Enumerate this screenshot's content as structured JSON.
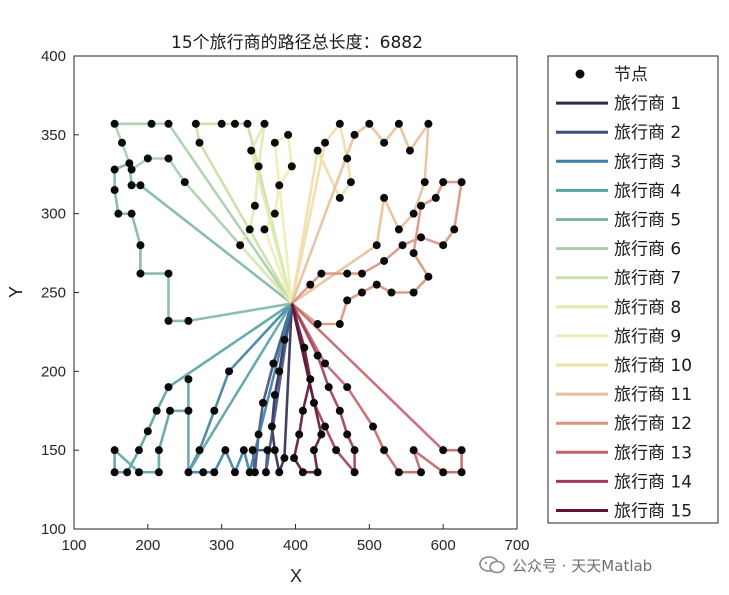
{
  "chart_data": {
    "type": "line",
    "title": "15个旅行商的路径总长度：6882",
    "xlabel": "X",
    "ylabel": "Y",
    "xlim": [
      100,
      700
    ],
    "ylim": [
      100,
      400
    ],
    "xticks": [
      "100",
      "200",
      "300",
      "400",
      "500",
      "600",
      "700"
    ],
    "yticks": [
      "100",
      "150",
      "200",
      "250",
      "300",
      "350",
      "400"
    ],
    "grid": false,
    "legend_position": "outside-right",
    "depot": [
      395,
      243
    ],
    "node_label": "节点",
    "series": [
      {
        "name": "旅行商 1",
        "color": "#2f2a4f",
        "points": [
          [
            395,
            243
          ],
          [
            385,
            220
          ],
          [
            378,
            200
          ],
          [
            372,
            185
          ],
          [
            368,
            165
          ],
          [
            372,
            150
          ],
          [
            378,
            136
          ],
          [
            385,
            145
          ],
          [
            395,
            243
          ]
        ]
      },
      {
        "name": "旅行商 2",
        "color": "#3b4f7e",
        "points": [
          [
            395,
            243
          ],
          [
            370,
            205
          ],
          [
            356,
            180
          ],
          [
            350,
            160
          ],
          [
            345,
            136
          ],
          [
            342,
            150
          ],
          [
            362,
            150
          ],
          [
            360,
            136
          ],
          [
            395,
            243
          ]
        ]
      },
      {
        "name": "旅行商 3",
        "color": "#3f7fa0",
        "points": [
          [
            395,
            243
          ],
          [
            310,
            200
          ],
          [
            290,
            175
          ],
          [
            270,
            150
          ],
          [
            255,
            136
          ],
          [
            275,
            136
          ],
          [
            290,
            136
          ],
          [
            305,
            150
          ],
          [
            318,
            136
          ],
          [
            330,
            150
          ],
          [
            338,
            136
          ],
          [
            395,
            243
          ]
        ]
      },
      {
        "name": "旅行商 4",
        "color": "#5aa3a3",
        "points": [
          [
            395,
            243
          ],
          [
            228,
            190
          ],
          [
            212,
            175
          ],
          [
            200,
            162
          ],
          [
            188,
            150
          ],
          [
            172,
            136
          ],
          [
            155,
            136
          ],
          [
            155,
            150
          ],
          [
            188,
            136
          ],
          [
            215,
            136
          ],
          [
            215,
            150
          ],
          [
            230,
            175
          ],
          [
            255,
            175
          ],
          [
            255,
            195
          ],
          [
            255,
            136
          ],
          [
            395,
            243
          ]
        ]
      },
      {
        "name": "旅行商 5",
        "color": "#7fb6a8",
        "points": [
          [
            395,
            243
          ],
          [
            255,
            232
          ],
          [
            228,
            232
          ],
          [
            228,
            262
          ],
          [
            190,
            262
          ],
          [
            190,
            280
          ],
          [
            178,
            300
          ],
          [
            160,
            300
          ],
          [
            155,
            315
          ],
          [
            155,
            328
          ],
          [
            175,
            332
          ],
          [
            178,
            318
          ],
          [
            190,
            318
          ],
          [
            395,
            243
          ]
        ]
      },
      {
        "name": "旅行商 6",
        "color": "#a6cfab",
        "points": [
          [
            395,
            243
          ],
          [
            250,
            320
          ],
          [
            228,
            335
          ],
          [
            200,
            335
          ],
          [
            178,
            328
          ],
          [
            165,
            345
          ],
          [
            155,
            357
          ],
          [
            205,
            357
          ],
          [
            228,
            357
          ],
          [
            395,
            243
          ]
        ]
      },
      {
        "name": "旅行商 7",
        "color": "#c8e0a6",
        "points": [
          [
            395,
            243
          ],
          [
            270,
            345
          ],
          [
            265,
            357
          ],
          [
            300,
            357
          ],
          [
            318,
            357
          ],
          [
            335,
            357
          ],
          [
            395,
            243
          ]
        ]
      },
      {
        "name": "旅行商 8",
        "color": "#e1ebb0",
        "points": [
          [
            395,
            243
          ],
          [
            340,
            340
          ],
          [
            358,
            357
          ],
          [
            350,
            330
          ],
          [
            345,
            305
          ],
          [
            338,
            290
          ],
          [
            325,
            280
          ],
          [
            395,
            243
          ]
        ]
      },
      {
        "name": "旅行商 9",
        "color": "#f0ecb4",
        "points": [
          [
            395,
            243
          ],
          [
            372,
            345
          ],
          [
            390,
            350
          ],
          [
            395,
            330
          ],
          [
            378,
            318
          ],
          [
            372,
            300
          ],
          [
            358,
            290
          ],
          [
            395,
            243
          ]
        ]
      },
      {
        "name": "旅行商 10",
        "color": "#f1dda8",
        "points": [
          [
            395,
            243
          ],
          [
            440,
            345
          ],
          [
            460,
            357
          ],
          [
            470,
            335
          ],
          [
            475,
            320
          ],
          [
            460,
            310
          ],
          [
            430,
            340
          ],
          [
            395,
            243
          ]
        ]
      },
      {
        "name": "旅行商 11",
        "color": "#e7c19a",
        "points": [
          [
            395,
            243
          ],
          [
            480,
            350
          ],
          [
            500,
            357
          ],
          [
            520,
            345
          ],
          [
            540,
            357
          ],
          [
            555,
            340
          ],
          [
            580,
            357
          ],
          [
            575,
            320
          ],
          [
            560,
            300
          ],
          [
            540,
            290
          ],
          [
            520,
            310
          ],
          [
            510,
            280
          ],
          [
            395,
            243
          ]
        ]
      },
      {
        "name": "旅行商 12",
        "color": "#d8957e",
        "points": [
          [
            395,
            243
          ],
          [
            420,
            255
          ],
          [
            435,
            262
          ],
          [
            470,
            262
          ],
          [
            490,
            262
          ],
          [
            520,
            270
          ],
          [
            545,
            280
          ],
          [
            570,
            285
          ],
          [
            600,
            280
          ],
          [
            615,
            290
          ],
          [
            625,
            320
          ],
          [
            600,
            320
          ],
          [
            590,
            310
          ],
          [
            570,
            305
          ],
          [
            560,
            275
          ],
          [
            580,
            260
          ],
          [
            560,
            250
          ],
          [
            530,
            250
          ],
          [
            510,
            255
          ],
          [
            490,
            250
          ],
          [
            470,
            245
          ],
          [
            460,
            230
          ],
          [
            430,
            230
          ],
          [
            395,
            243
          ]
        ]
      },
      {
        "name": "旅行商 13",
        "color": "#c2666a",
        "points": [
          [
            395,
            243
          ],
          [
            440,
            205
          ],
          [
            470,
            190
          ],
          [
            505,
            165
          ],
          [
            520,
            150
          ],
          [
            540,
            136
          ],
          [
            570,
            136
          ],
          [
            560,
            150
          ],
          [
            600,
            136
          ],
          [
            625,
            136
          ],
          [
            625,
            150
          ],
          [
            600,
            150
          ],
          [
            395,
            243
          ]
        ]
      },
      {
        "name": "旅行商 14",
        "color": "#9f3c5c",
        "points": [
          [
            395,
            243
          ],
          [
            430,
            210
          ],
          [
            445,
            190
          ],
          [
            460,
            175
          ],
          [
            470,
            160
          ],
          [
            480,
            150
          ],
          [
            480,
            136
          ],
          [
            455,
            150
          ],
          [
            440,
            165
          ],
          [
            425,
            180
          ],
          [
            395,
            243
          ]
        ]
      },
      {
        "name": "旅行商 15",
        "color": "#5e1436",
        "points": [
          [
            395,
            243
          ],
          [
            412,
            215
          ],
          [
            420,
            195
          ],
          [
            410,
            175
          ],
          [
            405,
            160
          ],
          [
            398,
            145
          ],
          [
            410,
            136
          ],
          [
            430,
            136
          ],
          [
            425,
            150
          ],
          [
            435,
            160
          ],
          [
            395,
            243
          ]
        ]
      }
    ]
  },
  "watermark": {
    "text": "公众号 · 天天Matlab"
  }
}
